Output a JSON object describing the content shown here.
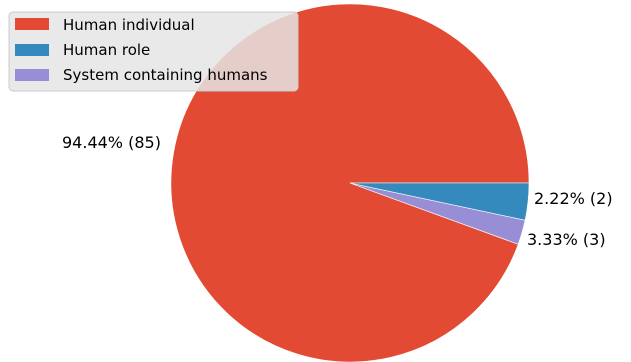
{
  "chart_data": {
    "type": "pie",
    "title": "",
    "slices": [
      {
        "label": "Human individual",
        "value": 85,
        "percent": 94.44,
        "color": "#e24a33",
        "text": "94.44%  (85)"
      },
      {
        "label": "System containing humans",
        "value": 2,
        "percent": 2.22,
        "color": "#988ed5",
        "text": "2.22%  (2)"
      },
      {
        "label": "Human role",
        "value": 3,
        "percent": 3.33,
        "color": "#348abd",
        "text": "3.33%  (3)"
      }
    ],
    "legend": {
      "placement": "upper-left",
      "entries": [
        {
          "label": "Human individual",
          "color": "#e24a33"
        },
        {
          "label": "Human role",
          "color": "#348abd"
        },
        {
          "label": "System containing humans",
          "color": "#988ed5"
        }
      ]
    }
  }
}
